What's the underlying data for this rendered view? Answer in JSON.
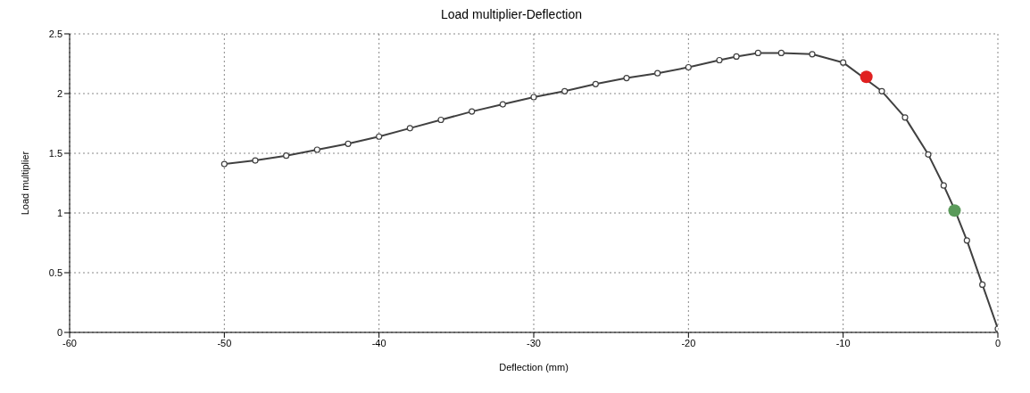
{
  "chart_data": {
    "type": "line",
    "title": "Load multiplier-Deflection",
    "xlabel": "Deflection (mm)",
    "ylabel": "Load multiplier",
    "xlim": [
      -60,
      0
    ],
    "xticks": [
      -60,
      -50,
      -40,
      -30,
      -20,
      -10,
      0
    ],
    "ylim": [
      0,
      2.5
    ],
    "yticks": [
      0,
      0.5,
      1,
      1.5,
      2,
      2.5
    ],
    "grid": true,
    "legend": false,
    "marker": "circle",
    "line_style": "solid",
    "series": [
      {
        "color": "#404040",
        "x": [
          -50,
          -48,
          -46,
          -44,
          -42,
          -40,
          -38,
          -36,
          -34,
          -32,
          -30,
          -28,
          -26,
          -24,
          -22,
          -20,
          -18,
          -16.9,
          -15.5,
          -14,
          -12,
          -10,
          -7.5,
          -6,
          -4.5,
          -3.5,
          -2.8,
          -2,
          -1,
          0
        ],
        "values": [
          1.41,
          1.44,
          1.48,
          1.53,
          1.58,
          1.64,
          1.71,
          1.78,
          1.85,
          1.91,
          1.97,
          2.02,
          2.08,
          2.13,
          2.17,
          2.22,
          2.28,
          2.31,
          2.34,
          2.34,
          2.33,
          2.26,
          2.02,
          1.8,
          1.49,
          1.23,
          1.03,
          0.77,
          0.4,
          0.03
        ]
      },
      {
        "type": "scatter",
        "color": "#e02020",
        "x": [
          -8.5
        ],
        "values": [
          2.14
        ]
      },
      {
        "type": "scatter",
        "color": "#5a9a5a",
        "x": [
          -2.8
        ],
        "values": [
          1.02
        ]
      }
    ]
  }
}
